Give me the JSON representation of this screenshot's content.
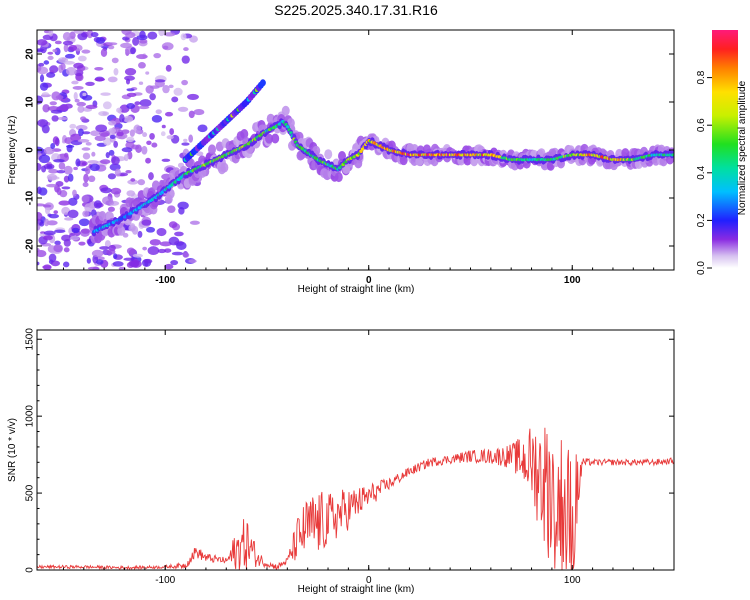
{
  "title": "S225.2025.340.17.31.R16",
  "chart_data": [
    {
      "type": "heatmap",
      "name": "spectrogram",
      "xlabel": "Height of straight line (km)",
      "ylabel": "Frequency (Hz)",
      "xlim": [
        -163,
        150
      ],
      "ylim": [
        -25,
        25
      ],
      "x_ticks": [
        {
          "value": -100,
          "label": "-100"
        },
        {
          "value": 0,
          "label": "0"
        },
        {
          "value": 100,
          "label": "100"
        }
      ],
      "y_ticks": [
        {
          "value": 20,
          "label": "20"
        },
        {
          "value": 10,
          "label": "10"
        },
        {
          "value": 0,
          "label": "0"
        },
        {
          "value": -10,
          "label": "-10"
        },
        {
          "value": -20,
          "label": "-20"
        }
      ],
      "ridge": {
        "x": [
          -135,
          -120,
          -105,
          -90,
          -80,
          -70,
          -60,
          -50,
          -45,
          -42,
          -40,
          -35,
          -25,
          -15,
          -10,
          -5,
          0,
          10,
          20,
          40,
          60,
          70,
          80,
          90,
          100,
          110,
          120,
          130,
          140,
          150
        ],
        "y": [
          -17,
          -14,
          -10,
          -5,
          -3,
          -1,
          1,
          4,
          5,
          6,
          5,
          1,
          -2,
          -4,
          -2,
          -1,
          2,
          0,
          -1,
          -1,
          -1,
          -2,
          -2,
          -2,
          -1,
          -1,
          -2,
          -2,
          -1,
          -1
        ],
        "amplitude": [
          0.35,
          0.3,
          0.4,
          0.5,
          0.6,
          0.55,
          0.6,
          0.55,
          0.5,
          0.4,
          0.5,
          0.6,
          0.55,
          0.5,
          0.6,
          0.7,
          0.75,
          0.85,
          0.95,
          0.9,
          0.8,
          0.55,
          0.5,
          0.5,
          0.6,
          0.85,
          0.85,
          0.6,
          0.45,
          0.45
        ]
      },
      "secondary_ridge": {
        "x": [
          -90,
          -70,
          -60,
          -52
        ],
        "y": [
          -2,
          6,
          10,
          14
        ]
      },
      "colorbar": {
        "label": "Normalized spectral amplitude",
        "range": [
          0,
          1
        ],
        "ticks": [
          {
            "value": 0.0,
            "label": "0.0"
          },
          {
            "value": 0.2,
            "label": "0.2"
          },
          {
            "value": 0.4,
            "label": "0.4"
          },
          {
            "value": 0.6,
            "label": "0.6"
          },
          {
            "value": 0.8,
            "label": "0.8"
          }
        ]
      }
    },
    {
      "type": "line",
      "name": "snr",
      "xlabel": "Height of straight line (km)",
      "ylabel": "SNR (10 * v/v)",
      "xlim": [
        -163,
        150
      ],
      "ylim": [
        0,
        1560
      ],
      "color": "#e83a3a",
      "x_ticks": [
        {
          "value": -100,
          "label": "-100"
        },
        {
          "value": 0,
          "label": "0"
        },
        {
          "value": 100,
          "label": "100"
        }
      ],
      "y_ticks": [
        {
          "value": 0,
          "label": "0"
        },
        {
          "value": 500,
          "label": "500"
        },
        {
          "value": 1000,
          "label": "1000"
        },
        {
          "value": 1500,
          "label": "1500"
        }
      ],
      "envelope": {
        "x": [
          -163,
          -140,
          -120,
          -100,
          -90,
          -85,
          -80,
          -70,
          -65,
          -60,
          -55,
          -50,
          -45,
          -40,
          -35,
          -30,
          -25,
          -20,
          -15,
          -10,
          -5,
          0,
          10,
          20,
          30,
          40,
          50,
          60,
          70,
          75,
          80,
          85,
          90,
          95,
          100,
          105,
          110,
          120,
          130,
          140,
          150
        ],
        "base": [
          20,
          20,
          15,
          20,
          30,
          120,
          80,
          60,
          120,
          180,
          80,
          40,
          20,
          60,
          200,
          280,
          300,
          320,
          360,
          400,
          440,
          480,
          560,
          640,
          700,
          720,
          740,
          740,
          740,
          720,
          700,
          600,
          500,
          400,
          300,
          700,
          700,
          700,
          700,
          700,
          710
        ],
        "noise": [
          10,
          10,
          10,
          10,
          20,
          40,
          30,
          20,
          150,
          180,
          60,
          20,
          20,
          20,
          150,
          200,
          220,
          180,
          160,
          140,
          100,
          80,
          40,
          30,
          30,
          30,
          40,
          50,
          80,
          150,
          250,
          400,
          500,
          500,
          500,
          30,
          20,
          20,
          20,
          20,
          20
        ]
      }
    }
  ]
}
